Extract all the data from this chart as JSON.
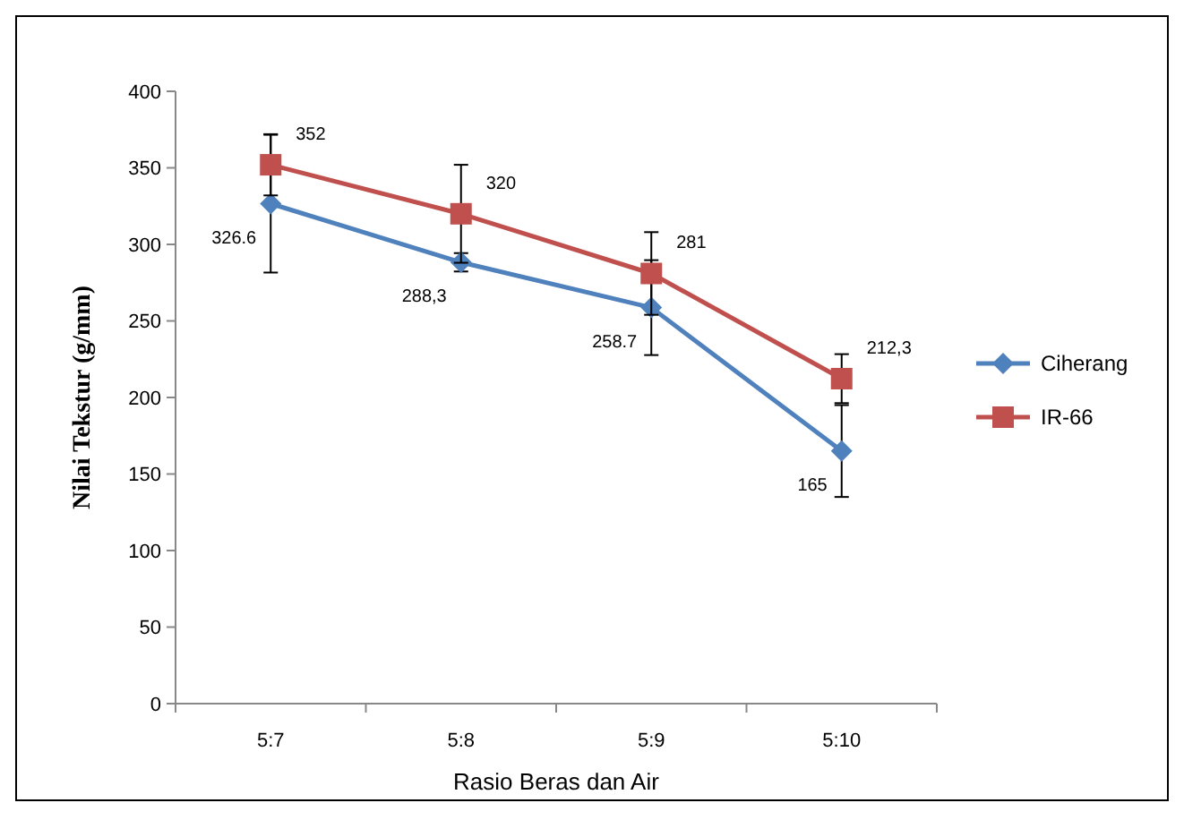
{
  "chart_data": {
    "type": "line",
    "xlabel": "Rasio Beras dan Air",
    "ylabel": "Nilai Tekstur (g/mm)",
    "categories": [
      "5:7",
      "5:8",
      "5:9",
      "5:10"
    ],
    "ylim": [
      0,
      400
    ],
    "yticks": [
      0,
      50,
      100,
      150,
      200,
      250,
      300,
      350,
      400
    ],
    "grid": false,
    "legend": "right",
    "series": [
      {
        "name": "Ciherang",
        "color": "#4f81bd",
        "marker": "diamond",
        "values": [
          326.6,
          288.3,
          258.7,
          165
        ],
        "errors": [
          45,
          6,
          31,
          30
        ],
        "value_labels": [
          "326.6",
          "288,3",
          "258.7",
          "165"
        ]
      },
      {
        "name": "IR-66",
        "color": "#c0504d",
        "marker": "square",
        "values": [
          352,
          320,
          281,
          212.3
        ],
        "errors": [
          20,
          32,
          27,
          16
        ],
        "value_labels": [
          "352",
          "320",
          "281",
          "212,3"
        ]
      }
    ]
  }
}
